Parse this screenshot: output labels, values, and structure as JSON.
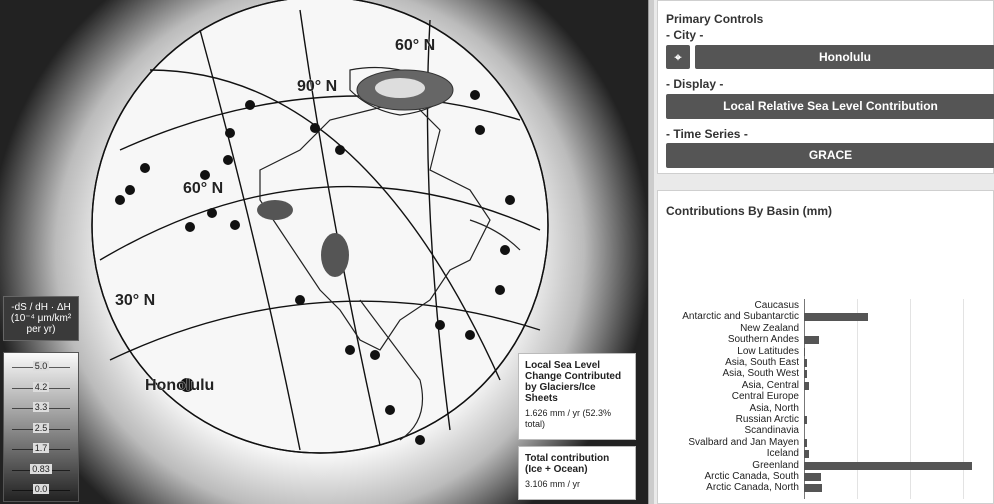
{
  "globe": {
    "labels": {
      "lat60_top": "60° N",
      "lat90": "90° N",
      "lat60_left": "60° N",
      "lat30": "30° N",
      "city": "Honolulu"
    }
  },
  "legend": {
    "title_line1": "-dS / dH · ΔH",
    "title_line2": "(10⁻⁴ μm/km²",
    "title_line3": "per yr)"
  },
  "scale": [
    "5.0",
    "4.2",
    "3.3",
    "2.5",
    "1.7",
    "0.83",
    "0.0"
  ],
  "cards": {
    "local": {
      "heading": "Local Sea Level Change Contributed by Glaciers/Ice Sheets",
      "value": "1.626 mm / yr (52.3% total)"
    },
    "total": {
      "heading": "Total contribution (Ice + Ocean)",
      "value": "3.106 mm / yr"
    }
  },
  "controls": {
    "title": "Primary Controls",
    "city_label": "- City -",
    "city_value": "Honolulu",
    "display_label": "- Display -",
    "display_value": "Local Relative Sea Level Contribution",
    "time_label": "- Time Series -",
    "time_value": "GRACE"
  },
  "basins": {
    "title": "Contributions By Basin (mm)",
    "items": [
      {
        "label": "Caucasus",
        "value": 0.0
      },
      {
        "label": "Antarctic and Subantarctic",
        "value": 0.38
      },
      {
        "label": "New Zealand",
        "value": 0.0
      },
      {
        "label": "Southern Andes",
        "value": 0.09
      },
      {
        "label": "Low Latitudes",
        "value": 0.005
      },
      {
        "label": "Asia, South East",
        "value": 0.02
      },
      {
        "label": "Asia, South West",
        "value": 0.02
      },
      {
        "label": "Asia, Central",
        "value": 0.03
      },
      {
        "label": "Central Europe",
        "value": 0.0
      },
      {
        "label": "Asia, North",
        "value": 0.0
      },
      {
        "label": "Russian Arctic",
        "value": 0.02
      },
      {
        "label": "Scandinavia",
        "value": 0.0
      },
      {
        "label": "Svalbard and Jan Mayen",
        "value": 0.02
      },
      {
        "label": "Iceland",
        "value": 0.03
      },
      {
        "label": "Greenland",
        "value": 1.0
      },
      {
        "label": "Arctic Canada, South",
        "value": 0.1
      },
      {
        "label": "Arctic Canada, North",
        "value": 0.11
      }
    ]
  }
}
